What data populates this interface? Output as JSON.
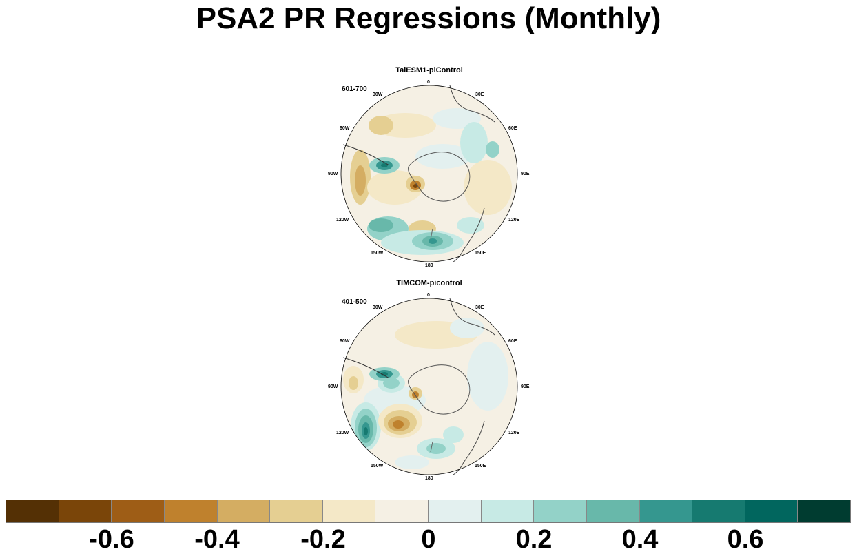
{
  "title": "PSA2 PR Regressions (Monthly)",
  "panels": [
    {
      "title": "TaiESM1-piControl",
      "period": "601-700",
      "lon_labels": {
        "n": "0",
        "nne": "30E",
        "ene": "60E",
        "e": "90E",
        "ese": "120E",
        "sse": "150E",
        "s": "180",
        "ssw": "150W",
        "wsw": "120W",
        "w": "90W",
        "wnw": "60W",
        "nnw": "30W"
      }
    },
    {
      "title": "TIMCOM-picontrol",
      "period": "401-500",
      "lon_labels": {
        "n": "0",
        "nne": "30E",
        "ene": "60E",
        "e": "90E",
        "ese": "120E",
        "sse": "150E",
        "s": "180",
        "ssw": "150W",
        "wsw": "120W",
        "w": "90W",
        "wnw": "60W",
        "nnw": "30W"
      }
    }
  ],
  "colorbar": {
    "colors": [
      "#543005",
      "#7a4509",
      "#9e5d16",
      "#bf812d",
      "#d4ad62",
      "#e5cf92",
      "#f4e8c7",
      "#f5f0e4",
      "#e3f0ef",
      "#c7eae5",
      "#93d2c8",
      "#68b8aa",
      "#35978f",
      "#167a70",
      "#01665e",
      "#003c30"
    ],
    "tick_labels": [
      "-0.6",
      "-0.4",
      "-0.2",
      "0",
      "0.2",
      "0.4",
      "0.6"
    ]
  }
}
